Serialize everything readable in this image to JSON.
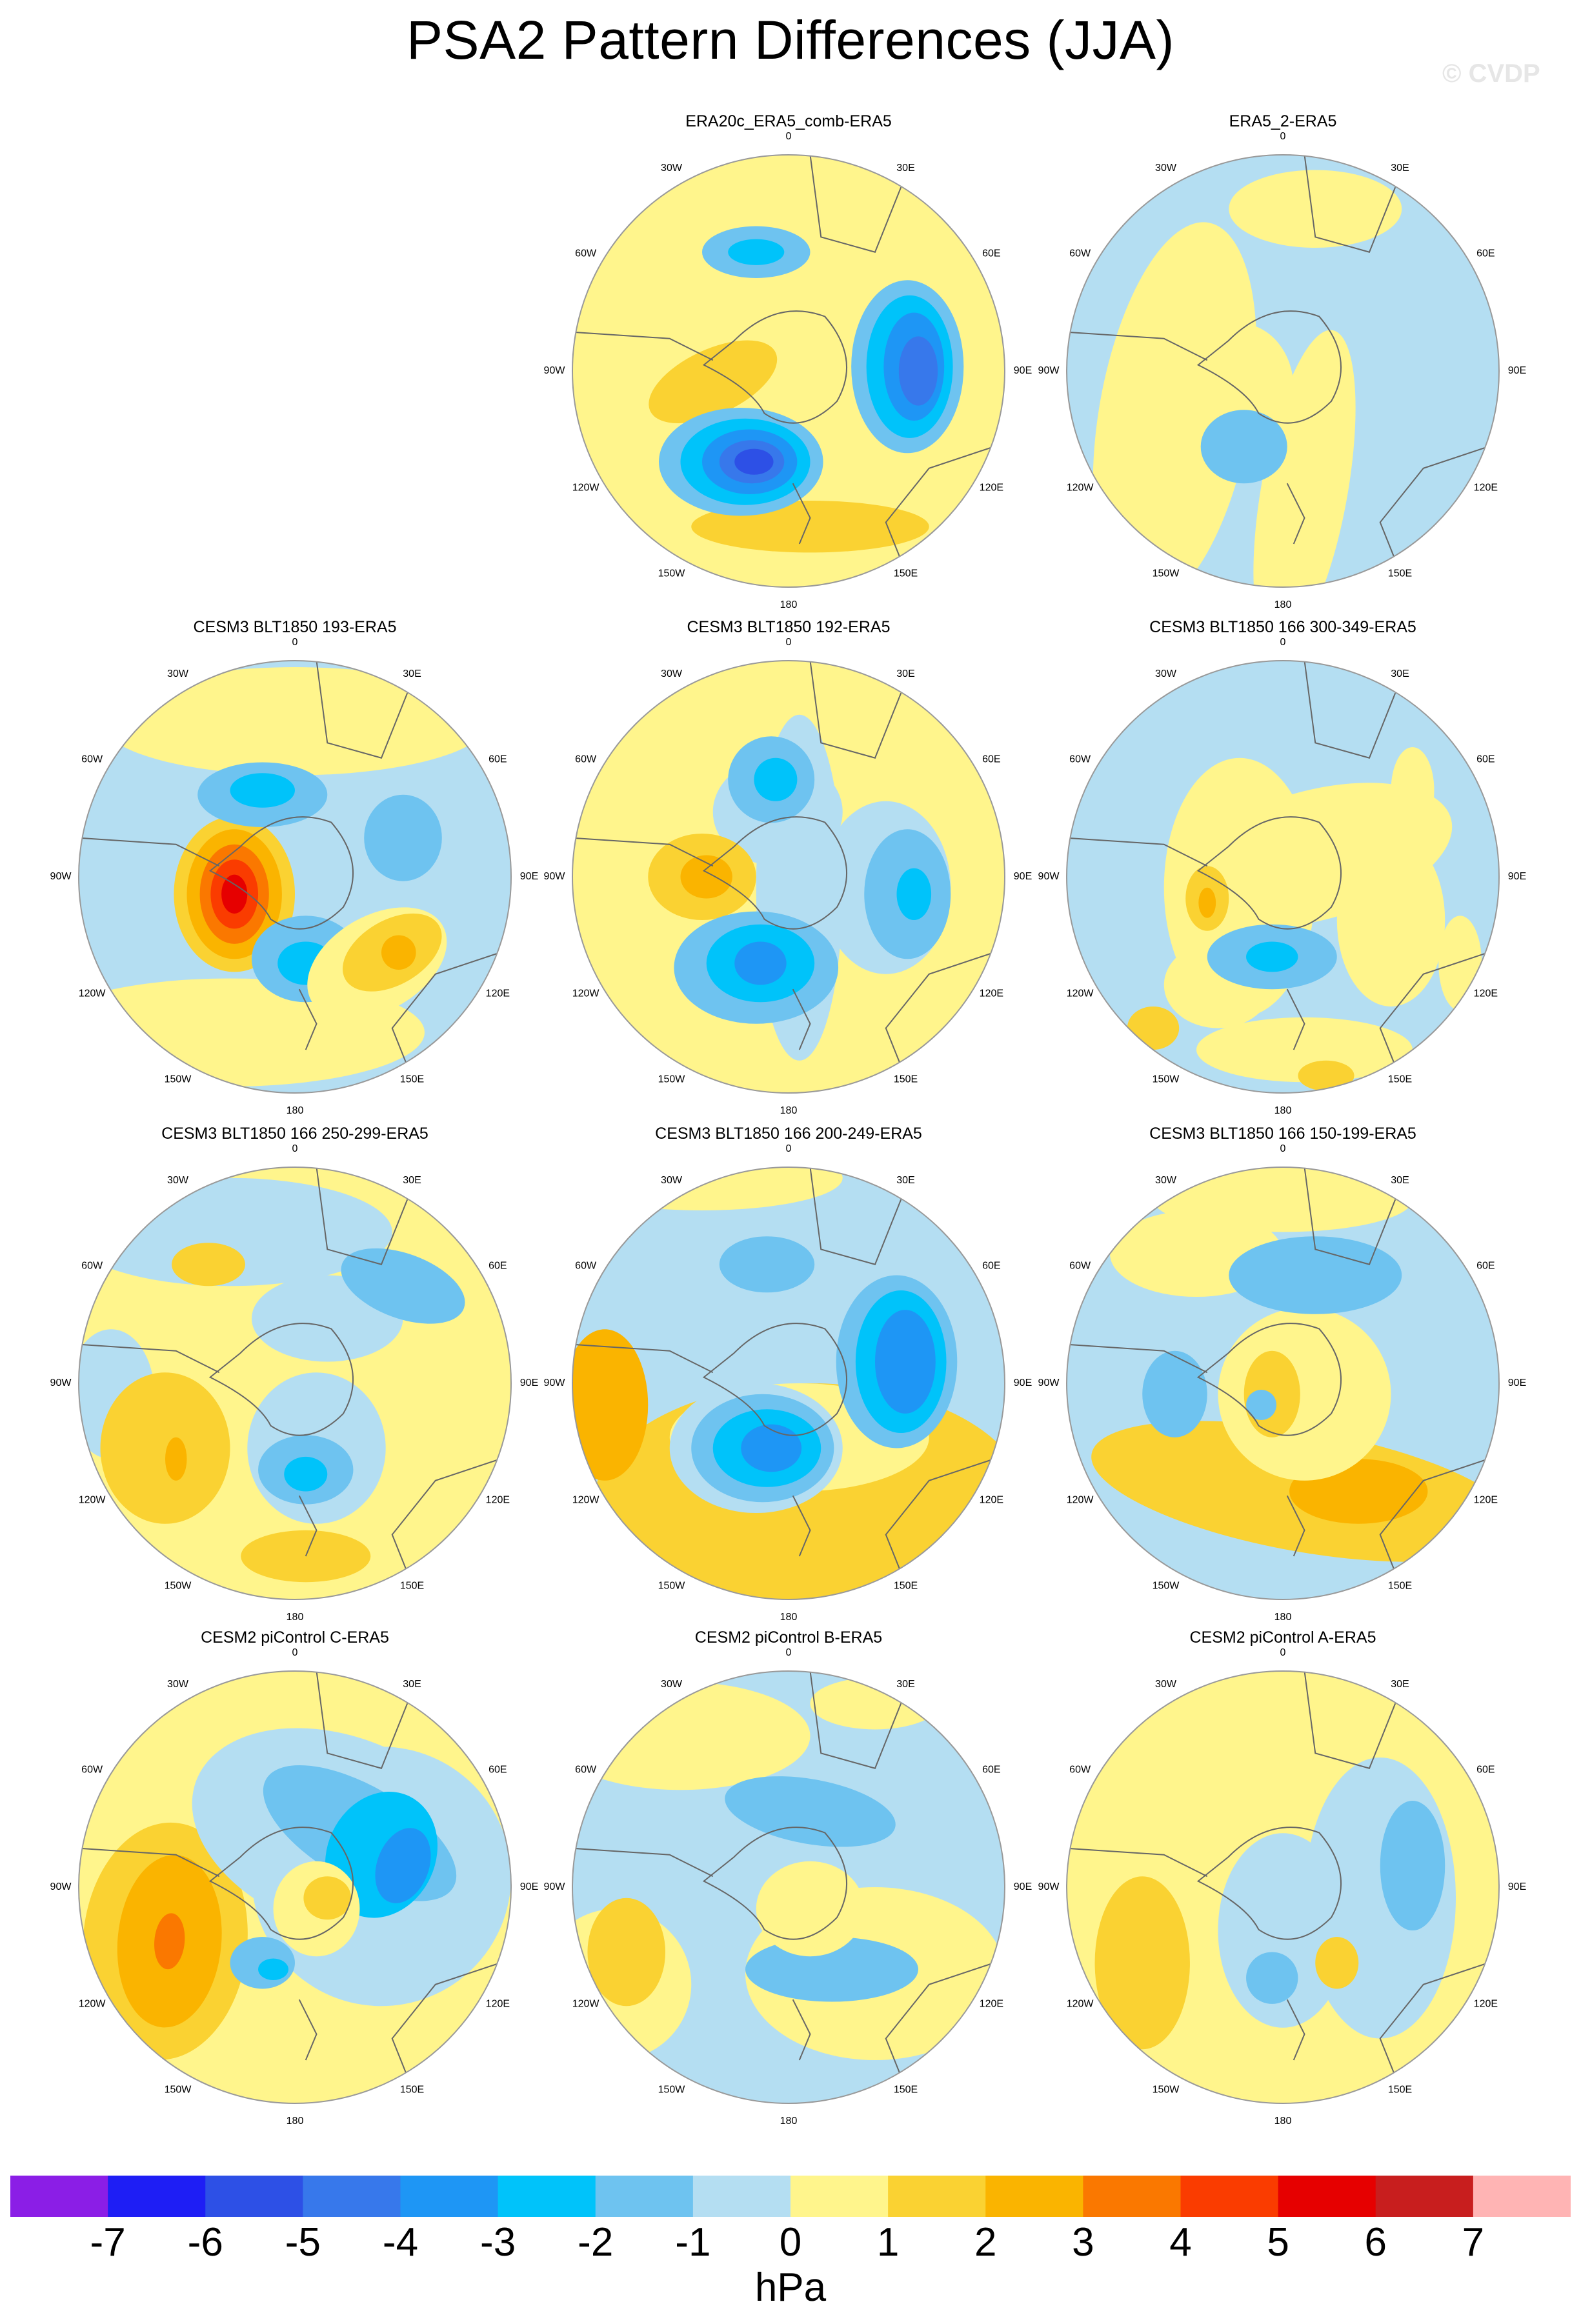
{
  "title": "PSA2 Pattern Differences (JJA)",
  "watermark": "© CVDP",
  "lon_labels": [
    "0",
    "30E",
    "60E",
    "90E",
    "120E",
    "150E",
    "180",
    "150W",
    "120W",
    "90W",
    "60W",
    "30W"
  ],
  "panels": [
    {
      "title": "ERA20c_ERA5_comb-ERA5",
      "pattern": "era20c"
    },
    {
      "title": "ERA5_2-ERA5",
      "pattern": "era5_2"
    },
    {
      "title": "CESM3 BLT1850 193-ERA5",
      "pattern": "b193"
    },
    {
      "title": "CESM3 BLT1850 192-ERA5",
      "pattern": "b192"
    },
    {
      "title": "CESM3 BLT1850 166 300-349-ERA5",
      "pattern": "b300"
    },
    {
      "title": "CESM3 BLT1850 166 250-299-ERA5",
      "pattern": "b250"
    },
    {
      "title": "CESM3 BLT1850 166 200-249-ERA5",
      "pattern": "b200"
    },
    {
      "title": "CESM3 BLT1850 166 150-199-ERA5",
      "pattern": "b150"
    },
    {
      "title": "CESM2 piControl C-ERA5",
      "pattern": "picC"
    },
    {
      "title": "CESM2 piControl B-ERA5",
      "pattern": "picB"
    },
    {
      "title": "CESM2 piControl A-ERA5",
      "pattern": "picA"
    }
  ],
  "colorbar": {
    "colors": [
      "#8b1ee6",
      "#1e1ef5",
      "#2d50e6",
      "#3778eb",
      "#1e96f5",
      "#00c3fa",
      "#6ec3f0",
      "#b4def2",
      "#fff58c",
      "#fad232",
      "#fab400",
      "#fa7800",
      "#fa3c00",
      "#e60000",
      "#c81e1e",
      "#ffb4b4"
    ],
    "labels": [
      "-7",
      "-6",
      "-5",
      "-4",
      "-3",
      "-2",
      "-1",
      "0",
      "1",
      "2",
      "3",
      "4",
      "5",
      "6",
      "7"
    ],
    "units": "hPa"
  }
}
